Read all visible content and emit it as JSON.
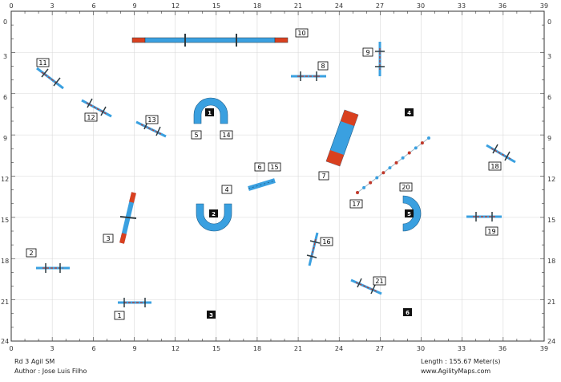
{
  "course": {
    "title": "Rd 3 Agil SM",
    "author": "Author : Jose Luis Filho",
    "length": "Length : 155.67 Meter(s)",
    "website": "www.AgilityMaps.com"
  },
  "axes": {
    "x_ticks": [
      "3",
      "6",
      "9",
      "12",
      "15",
      "18",
      "21",
      "24",
      "27",
      "30",
      "33",
      "36"
    ],
    "x_corner_left": "0",
    "x_corner_right": "39",
    "y_ticks": [
      "3",
      "6",
      "9",
      "12",
      "15",
      "18",
      "21"
    ],
    "y_corner_top": "0",
    "y_corner_bottom": "24"
  },
  "number_labels": [
    {
      "id": "n1",
      "text": "1"
    },
    {
      "id": "n2",
      "text": "2"
    },
    {
      "id": "n3",
      "text": "3"
    },
    {
      "id": "n4",
      "text": "4"
    },
    {
      "id": "n5",
      "text": "5"
    },
    {
      "id": "n6",
      "text": "6"
    },
    {
      "id": "n7",
      "text": "7"
    },
    {
      "id": "n8",
      "text": "8"
    },
    {
      "id": "n9",
      "text": "9"
    },
    {
      "id": "n10",
      "text": "10"
    },
    {
      "id": "n11",
      "text": "11"
    },
    {
      "id": "n12",
      "text": "12"
    },
    {
      "id": "n13",
      "text": "13"
    },
    {
      "id": "n14",
      "text": "14"
    },
    {
      "id": "n15",
      "text": "15"
    },
    {
      "id": "n16",
      "text": "16"
    },
    {
      "id": "n17",
      "text": "17"
    },
    {
      "id": "n18",
      "text": "18"
    },
    {
      "id": "n19",
      "text": "19"
    },
    {
      "id": "n20",
      "text": "20"
    },
    {
      "id": "n21",
      "text": "21"
    }
  ],
  "judge_markers": [
    {
      "id": "m1",
      "text": "1"
    },
    {
      "id": "m2",
      "text": "2"
    },
    {
      "id": "m3",
      "text": "3"
    },
    {
      "id": "m4",
      "text": "4"
    },
    {
      "id": "m5",
      "text": "5"
    },
    {
      "id": "m6",
      "text": "6"
    }
  ],
  "colors": {
    "obstacle_blue": "#3aa0e0",
    "contact_red": "#d9401f",
    "bar_red": "#c0392b",
    "post_dark": "#2d3a40",
    "grid": "#d8d8d8"
  }
}
